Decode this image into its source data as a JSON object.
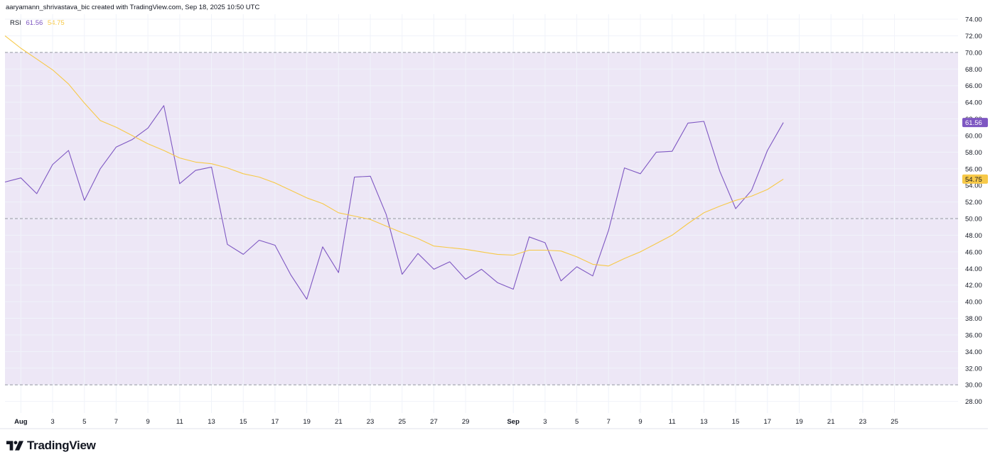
{
  "header": {
    "attribution": "aaryamann_shrivastava_bic created with TradingView.com, Sep 18, 2025 10:50 UTC"
  },
  "legend": {
    "label": "RSI",
    "rsi_value": "61.56",
    "ma_value": "54.75"
  },
  "brand": {
    "name": "TradingView"
  },
  "colors": {
    "rsi": "#7e57c2",
    "ma": "#f7c948",
    "band": "#ede7f6",
    "grid": "#f0f3fa",
    "axis_text": "#131722"
  },
  "chart_data": {
    "type": "line",
    "y_axis": {
      "range": [
        26.6,
        74.6
      ],
      "ticks": [
        "28.00",
        "30.00",
        "32.00",
        "34.00",
        "36.00",
        "38.00",
        "40.00",
        "42.00",
        "44.00",
        "46.00",
        "48.00",
        "50.00",
        "52.00",
        "54.00",
        "56.00",
        "58.00",
        "60.00",
        "62.00",
        "64.00",
        "66.00",
        "68.00",
        "70.00",
        "72.00",
        "74.00"
      ],
      "position": "right"
    },
    "x_axis": {
      "range": [
        "2025-07-31",
        "2025-09-29"
      ],
      "ticks": [
        {
          "date": "2025-08-01",
          "label": "Aug",
          "bold": true
        },
        {
          "date": "2025-08-03",
          "label": "3"
        },
        {
          "date": "2025-08-05",
          "label": "5"
        },
        {
          "date": "2025-08-07",
          "label": "7"
        },
        {
          "date": "2025-08-09",
          "label": "9"
        },
        {
          "date": "2025-08-11",
          "label": "11"
        },
        {
          "date": "2025-08-13",
          "label": "13"
        },
        {
          "date": "2025-08-15",
          "label": "15"
        },
        {
          "date": "2025-08-17",
          "label": "17"
        },
        {
          "date": "2025-08-19",
          "label": "19"
        },
        {
          "date": "2025-08-21",
          "label": "21"
        },
        {
          "date": "2025-08-23",
          "label": "23"
        },
        {
          "date": "2025-08-25",
          "label": "25"
        },
        {
          "date": "2025-08-27",
          "label": "27"
        },
        {
          "date": "2025-08-29",
          "label": "29"
        },
        {
          "date": "2025-09-01",
          "label": "Sep",
          "bold": true
        },
        {
          "date": "2025-09-03",
          "label": "3"
        },
        {
          "date": "2025-09-05",
          "label": "5"
        },
        {
          "date": "2025-09-07",
          "label": "7"
        },
        {
          "date": "2025-09-09",
          "label": "9"
        },
        {
          "date": "2025-09-11",
          "label": "11"
        },
        {
          "date": "2025-09-13",
          "label": "13"
        },
        {
          "date": "2025-09-15",
          "label": "15"
        },
        {
          "date": "2025-09-17",
          "label": "17"
        },
        {
          "date": "2025-09-19",
          "label": "19"
        },
        {
          "date": "2025-09-21",
          "label": "21"
        },
        {
          "date": "2025-09-23",
          "label": "23"
        },
        {
          "date": "2025-09-25",
          "label": "25"
        }
      ]
    },
    "bands": {
      "upper": 70,
      "middle": 50,
      "lower": 30
    },
    "grid": true,
    "series": [
      {
        "name": "RSI",
        "color": "#7e57c2",
        "last_label": "61.56",
        "points": [
          [
            "2025-07-31",
            54.4
          ],
          [
            "2025-08-01",
            54.9
          ],
          [
            "2025-08-02",
            53.0
          ],
          [
            "2025-08-03",
            56.5
          ],
          [
            "2025-08-04",
            58.2
          ],
          [
            "2025-08-05",
            52.2
          ],
          [
            "2025-08-06",
            56.0
          ],
          [
            "2025-08-07",
            58.6
          ],
          [
            "2025-08-08",
            59.5
          ],
          [
            "2025-08-09",
            60.9
          ],
          [
            "2025-08-10",
            63.6
          ],
          [
            "2025-08-11",
            54.2
          ],
          [
            "2025-08-12",
            55.8
          ],
          [
            "2025-08-13",
            56.2
          ],
          [
            "2025-08-14",
            46.9
          ],
          [
            "2025-08-15",
            45.7
          ],
          [
            "2025-08-16",
            47.4
          ],
          [
            "2025-08-17",
            46.8
          ],
          [
            "2025-08-18",
            43.2
          ],
          [
            "2025-08-19",
            40.3
          ],
          [
            "2025-08-20",
            46.6
          ],
          [
            "2025-08-21",
            43.5
          ],
          [
            "2025-08-22",
            55.0
          ],
          [
            "2025-08-23",
            55.1
          ],
          [
            "2025-08-24",
            50.5
          ],
          [
            "2025-08-25",
            43.3
          ],
          [
            "2025-08-26",
            45.8
          ],
          [
            "2025-08-27",
            43.9
          ],
          [
            "2025-08-28",
            44.8
          ],
          [
            "2025-08-29",
            42.7
          ],
          [
            "2025-08-30",
            43.9
          ],
          [
            "2025-08-31",
            42.3
          ],
          [
            "2025-09-01",
            41.5
          ],
          [
            "2025-09-02",
            47.8
          ],
          [
            "2025-09-03",
            47.1
          ],
          [
            "2025-09-04",
            42.5
          ],
          [
            "2025-09-05",
            44.2
          ],
          [
            "2025-09-06",
            43.1
          ],
          [
            "2025-09-07",
            48.6
          ],
          [
            "2025-09-08",
            56.1
          ],
          [
            "2025-09-09",
            55.4
          ],
          [
            "2025-09-10",
            58.0
          ],
          [
            "2025-09-11",
            58.1
          ],
          [
            "2025-09-12",
            61.5
          ],
          [
            "2025-09-13",
            61.7
          ],
          [
            "2025-09-14",
            55.7
          ],
          [
            "2025-09-15",
            51.2
          ],
          [
            "2025-09-16",
            53.4
          ],
          [
            "2025-09-17",
            58.2
          ],
          [
            "2025-09-18",
            61.56
          ]
        ]
      },
      {
        "name": "RSI-based MA",
        "color": "#f7c948",
        "last_label": "54.75",
        "points": [
          [
            "2025-07-31",
            72.0
          ],
          [
            "2025-08-01",
            70.5
          ],
          [
            "2025-08-02",
            69.2
          ],
          [
            "2025-08-03",
            67.9
          ],
          [
            "2025-08-04",
            66.2
          ],
          [
            "2025-08-05",
            63.9
          ],
          [
            "2025-08-06",
            61.8
          ],
          [
            "2025-08-07",
            61.0
          ],
          [
            "2025-08-08",
            60.0
          ],
          [
            "2025-08-09",
            59.0
          ],
          [
            "2025-08-10",
            58.2
          ],
          [
            "2025-08-11",
            57.3
          ],
          [
            "2025-08-12",
            56.8
          ],
          [
            "2025-08-13",
            56.6
          ],
          [
            "2025-08-14",
            56.1
          ],
          [
            "2025-08-15",
            55.4
          ],
          [
            "2025-08-16",
            55.0
          ],
          [
            "2025-08-17",
            54.3
          ],
          [
            "2025-08-18",
            53.4
          ],
          [
            "2025-08-19",
            52.5
          ],
          [
            "2025-08-20",
            51.8
          ],
          [
            "2025-08-21",
            50.7
          ],
          [
            "2025-08-22",
            50.3
          ],
          [
            "2025-08-23",
            49.9
          ],
          [
            "2025-08-24",
            49.1
          ],
          [
            "2025-08-25",
            48.3
          ],
          [
            "2025-08-26",
            47.6
          ],
          [
            "2025-08-27",
            46.7
          ],
          [
            "2025-08-28",
            46.5
          ],
          [
            "2025-08-29",
            46.3
          ],
          [
            "2025-08-30",
            46.0
          ],
          [
            "2025-08-31",
            45.7
          ],
          [
            "2025-09-01",
            45.6
          ],
          [
            "2025-09-02",
            46.2
          ],
          [
            "2025-09-03",
            46.2
          ],
          [
            "2025-09-04",
            46.1
          ],
          [
            "2025-09-05",
            45.4
          ],
          [
            "2025-09-06",
            44.5
          ],
          [
            "2025-09-07",
            44.3
          ],
          [
            "2025-09-08",
            45.2
          ],
          [
            "2025-09-09",
            46.0
          ],
          [
            "2025-09-10",
            47.0
          ],
          [
            "2025-09-11",
            48.0
          ],
          [
            "2025-09-12",
            49.4
          ],
          [
            "2025-09-13",
            50.7
          ],
          [
            "2025-09-14",
            51.5
          ],
          [
            "2025-09-15",
            52.2
          ],
          [
            "2025-09-16",
            52.7
          ],
          [
            "2025-09-17",
            53.5
          ],
          [
            "2025-09-18",
            54.75
          ]
        ]
      }
    ]
  }
}
